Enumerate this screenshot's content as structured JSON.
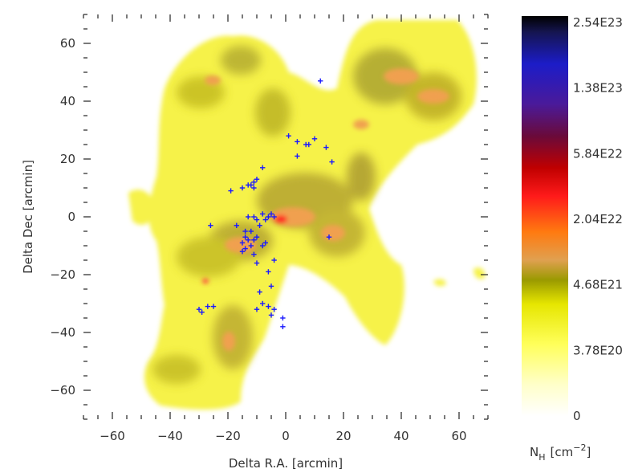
{
  "chart_data": {
    "type": "heatmap",
    "xlabel": "Delta R.A. [arcmin]",
    "ylabel": "Delta Dec [arcmin]",
    "xlim": [
      -70,
      70
    ],
    "ylim": [
      -70,
      70
    ],
    "xticks": [
      -60,
      -40,
      -20,
      0,
      20,
      40,
      60
    ],
    "yticks": [
      -60,
      -40,
      -20,
      0,
      20,
      40,
      60
    ],
    "grid": false,
    "colorbar": {
      "label_main": "N",
      "label_sub": "H",
      "label_unit": "[cm",
      "label_exp": "−2",
      "label_close": "]",
      "ticks": [
        "2.54E23",
        "1.38E23",
        "5.84E22",
        "2.04E22",
        "4.68E21",
        "3.78E20",
        "0"
      ],
      "colors": [
        "#000000",
        "#1a1a7a",
        "#2b2bd8",
        "#5a1a8a",
        "#7a0a2a",
        "#c80000",
        "#ff1a1a",
        "#ff7000",
        "#e8a050",
        "#9a9a00",
        "#e6e600",
        "#ffff66",
        "#ffffff"
      ]
    },
    "markers": {
      "symbol": "+",
      "color": "#1a1aff",
      "points": [
        [
          12,
          47
        ],
        [
          1,
          28
        ],
        [
          4,
          26
        ],
        [
          7,
          25
        ],
        [
          8,
          25
        ],
        [
          10,
          27
        ],
        [
          14,
          24
        ],
        [
          4,
          21
        ],
        [
          16,
          19
        ],
        [
          -8,
          17
        ],
        [
          -10,
          13
        ],
        [
          -11,
          12
        ],
        [
          -12,
          11
        ],
        [
          -11,
          10
        ],
        [
          -13,
          11
        ],
        [
          -15,
          10
        ],
        [
          -19,
          9
        ],
        [
          -5,
          1
        ],
        [
          -4,
          0
        ],
        [
          -6,
          0
        ],
        [
          -7,
          -1
        ],
        [
          -8,
          1
        ],
        [
          -11,
          0
        ],
        [
          -13,
          0
        ],
        [
          -10,
          -1
        ],
        [
          -9,
          -3
        ],
        [
          -12,
          -5
        ],
        [
          -14,
          -5
        ],
        [
          -13,
          -8
        ],
        [
          -14,
          -7
        ],
        [
          -15,
          -9
        ],
        [
          -11,
          -8
        ],
        [
          -10,
          -7
        ],
        [
          -12,
          -10
        ],
        [
          -14,
          -11
        ],
        [
          -15,
          -12
        ],
        [
          -11,
          -13
        ],
        [
          -10,
          -16
        ],
        [
          -8,
          -10
        ],
        [
          -7,
          -9
        ],
        [
          -26,
          -3
        ],
        [
          -17,
          -3
        ],
        [
          15,
          -7
        ],
        [
          -4,
          -15
        ],
        [
          -6,
          -19
        ],
        [
          -5,
          -24
        ],
        [
          -9,
          -26
        ],
        [
          -8,
          -30
        ],
        [
          -10,
          -32
        ],
        [
          -6,
          -31
        ],
        [
          -4,
          -32
        ],
        [
          -5,
          -34
        ],
        [
          -1,
          -35
        ],
        [
          -1,
          -38
        ],
        [
          -30,
          -32
        ],
        [
          -29,
          -33
        ],
        [
          -27,
          -31
        ],
        [
          -25,
          -31
        ]
      ]
    }
  }
}
